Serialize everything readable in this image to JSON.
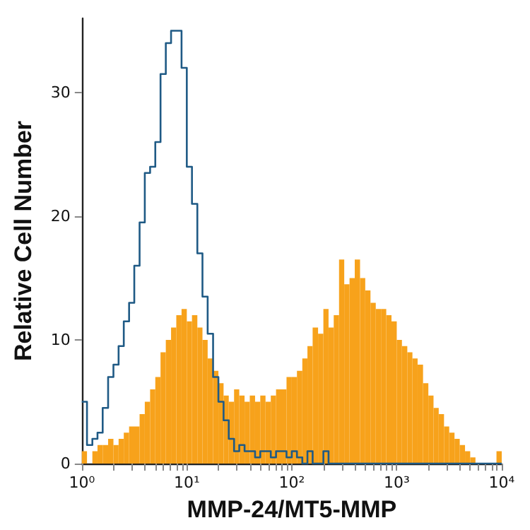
{
  "chart_data": {
    "type": "histogram",
    "xlabel": "MMP-24/MT5-MMP",
    "ylabel": "Relative Cell Number",
    "bins": [
      1,
      1.12,
      1.26,
      1.41,
      1.58,
      1.78,
      2,
      2.24,
      2.51,
      2.82,
      3.16,
      3.55,
      3.98,
      4.47,
      5.01,
      5.62,
      6.31,
      7.08,
      7.94,
      8.91,
      10,
      11.2,
      12.6,
      14.1,
      15.8,
      17.8,
      20,
      22.4,
      25.1,
      28.2,
      31.6,
      35.5,
      39.8,
      44.7,
      50.1,
      56.2,
      63.1,
      70.8,
      79.4,
      89.1,
      100,
      112,
      126,
      141,
      158,
      178,
      200,
      224,
      251,
      282,
      316,
      355,
      398,
      447,
      501,
      562,
      631,
      708,
      794,
      891,
      1000,
      1120,
      1260,
      1410,
      1580,
      1780,
      2000,
      2240,
      2510,
      2820,
      3160,
      3550,
      3980,
      4470,
      5010,
      5620,
      6310,
      7080,
      7940,
      8910,
      10000
    ],
    "series": [
      {
        "color": "#f7a21b",
        "values": [
          1,
          0,
          1,
          1.5,
          1.5,
          2,
          1.5,
          2,
          2.5,
          3,
          3,
          4,
          5,
          6,
          7,
          9,
          10,
          11,
          12,
          12.5,
          11.5,
          12,
          11,
          10,
          8.5,
          7.5,
          6.5,
          5.5,
          5,
          6,
          5.5,
          5,
          5.5,
          5,
          5.5,
          5,
          5.5,
          6,
          6,
          7,
          7,
          7.5,
          8.5,
          9.5,
          11,
          10.5,
          12.5,
          11,
          12,
          16.5,
          14.5,
          15,
          16.5,
          15,
          14,
          13,
          12.5,
          12.5,
          12,
          11.5,
          10,
          9.5,
          9,
          8.5,
          8,
          6.5,
          5.5,
          4.5,
          4,
          3,
          2.5,
          2,
          1.5,
          1,
          0.5,
          0,
          0,
          0,
          0,
          1
        ]
      },
      {
        "type": "step",
        "color": "#1f5a85",
        "x": [
          1,
          1.12,
          1.26,
          1.41,
          1.58,
          1.78,
          2,
          2.24,
          2.51,
          2.82,
          3.16,
          3.55,
          3.98,
          4.47,
          5.01,
          5.62,
          6.31,
          7.08,
          7.94,
          8.91,
          10,
          11.2,
          12.6,
          14.1,
          15.8,
          17.8,
          20,
          22.4,
          25.1,
          28.2,
          31.6,
          35.5,
          39.8,
          44.7,
          50.1,
          56.2,
          63.1,
          70.8,
          79.4,
          89.1,
          100,
          112,
          126,
          141,
          158,
          178,
          200,
          224,
          251,
          282,
          316,
          355,
          398,
          447,
          501,
          562,
          631,
          708,
          794,
          891,
          1000,
          1120,
          1260,
          1410,
          1580,
          1780,
          2000,
          2240,
          2510,
          2820,
          3160,
          3550,
          3980,
          4470,
          5010,
          5620,
          6310,
          7080,
          7940,
          8910,
          10000
        ],
        "values": [
          5,
          1.5,
          2,
          2.5,
          4.5,
          7,
          8,
          9.5,
          11.5,
          13,
          16,
          19.5,
          23.5,
          24,
          26,
          31.5,
          34,
          35,
          35,
          32,
          24,
          21,
          17,
          13.5,
          10.5,
          7,
          5,
          3.5,
          2,
          1,
          1.5,
          1,
          1,
          0.5,
          1,
          1,
          0.5,
          1,
          1,
          0.5,
          1,
          0.5,
          0,
          1,
          0,
          0,
          1,
          0,
          0,
          0,
          0,
          0,
          0,
          0,
          0,
          0,
          0,
          0,
          0,
          0,
          0,
          0,
          0,
          0,
          0,
          0,
          0,
          0,
          0,
          0,
          0,
          0,
          0,
          0,
          0,
          0,
          0,
          0,
          0,
          0,
          0
        ]
      }
    ],
    "xlim": [
      1,
      10000
    ],
    "log": "x",
    "xticks": [
      {
        "value": 1,
        "label": "10⁰"
      },
      {
        "value": 2,
        "label": null
      },
      {
        "value": 3,
        "label": null
      },
      {
        "value": 4,
        "label": null
      },
      {
        "value": 5,
        "label": null
      },
      {
        "value": 6,
        "label": null
      },
      {
        "value": 7,
        "label": null
      },
      {
        "value": 8,
        "label": null
      },
      {
        "value": 9,
        "label": null
      },
      {
        "value": 10,
        "label": "10¹"
      },
      {
        "value": 20,
        "label": null
      },
      {
        "value": 30,
        "label": null
      },
      {
        "value": 40,
        "label": null
      },
      {
        "value": 50,
        "label": null
      },
      {
        "value": 60,
        "label": null
      },
      {
        "value": 70,
        "label": null
      },
      {
        "value": 80,
        "label": null
      },
      {
        "value": 90,
        "label": null
      },
      {
        "value": 100,
        "label": "10²"
      },
      {
        "value": 200,
        "label": null
      },
      {
        "value": 300,
        "label": null
      },
      {
        "value": 400,
        "label": null
      },
      {
        "value": 500,
        "label": null
      },
      {
        "value": 600,
        "label": null
      },
      {
        "value": 700,
        "label": null
      },
      {
        "value": 800,
        "label": null
      },
      {
        "value": 900,
        "label": null
      },
      {
        "value": 1000,
        "label": "10³"
      },
      {
        "value": 2000,
        "label": null
      },
      {
        "value": 3000,
        "label": null
      },
      {
        "value": 4000,
        "label": null
      },
      {
        "value": 5000,
        "label": null
      },
      {
        "value": 6000,
        "label": null
      },
      {
        "value": 7000,
        "label": null
      },
      {
        "value": 8000,
        "label": null
      },
      {
        "value": 9000,
        "label": null
      },
      {
        "value": 10000,
        "label": "10⁴"
      }
    ],
    "ylim": [
      0,
      36
    ],
    "yticks": [
      0,
      10,
      20,
      30
    ],
    "grid": false
  }
}
